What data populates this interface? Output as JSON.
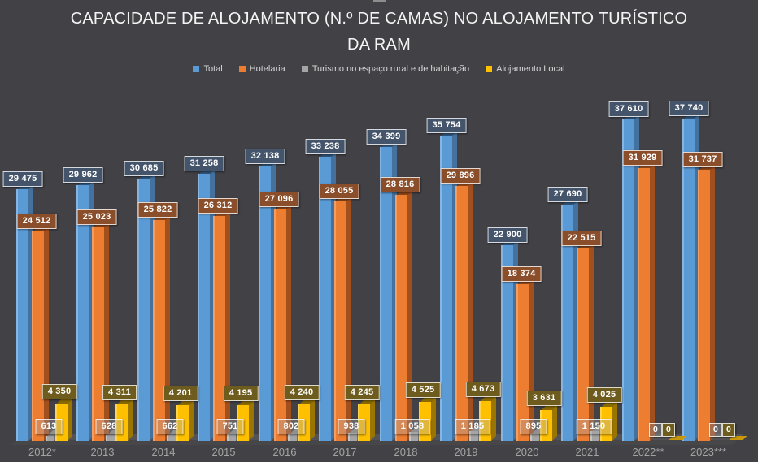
{
  "title": {
    "line1": "CAPACIDADE DE ALOJAMENTO (N.º DE CAMAS) NO ALOJAMENTO TURÍSTICO",
    "line2": "DA RAM"
  },
  "chart_data": {
    "type": "bar",
    "style": "3d-clustered-column-dark",
    "title": "CAPACIDADE DE ALOJAMENTO (N.º DE CAMAS) NO ALOJAMENTO TURÍSTICO DA RAM",
    "background": "#414146",
    "grid": false,
    "legend_position": "top",
    "number_format": "space-thousands",
    "ylim": [
      0,
      38000
    ],
    "categories": [
      "2012*",
      "2013",
      "2014",
      "2015",
      "2016",
      "2017",
      "2018",
      "2019",
      "2020",
      "2021",
      "2022**",
      "2023***"
    ],
    "series": [
      {
        "name": "Total",
        "color": "#5B9BD5",
        "highlight": "#85B6E3",
        "side_color": "#44719E",
        "top_color": "#30567D",
        "label_bg": "#44546A",
        "values": [
          29475,
          29962,
          30685,
          31258,
          32138,
          33238,
          34399,
          35754,
          22900,
          27690,
          37610,
          37740
        ]
      },
      {
        "name": "Hotelaria",
        "color": "#ED7D31",
        "highlight": "#F49D62",
        "side_color": "#A24F1E",
        "top_color": "#8F4719",
        "label_bg": "#8A4F2A",
        "values": [
          24512,
          25023,
          25822,
          26312,
          27096,
          28055,
          28816,
          29896,
          18374,
          22515,
          31929,
          31737
        ]
      },
      {
        "name": "Turismo no espaço rural e de habitação",
        "color": "#A5A5A5",
        "highlight": "#C4C4C4",
        "side_color": "#6F6F6F",
        "top_color": "#858585",
        "label_bg": "rgba(165,165,165,0.35)",
        "values": [
          613,
          628,
          662,
          751,
          802,
          938,
          1058,
          1185,
          895,
          1150,
          0,
          0
        ]
      },
      {
        "name": "Alojamento Local",
        "color": "#FFC000",
        "highlight": "#FFD34D",
        "side_color": "#9A7500",
        "top_color": "#8A6B00",
        "label_bg": "#6E5C1E",
        "values": [
          4350,
          4311,
          4201,
          4195,
          4240,
          4245,
          4525,
          4673,
          3631,
          4025,
          0,
          0
        ]
      }
    ]
  }
}
